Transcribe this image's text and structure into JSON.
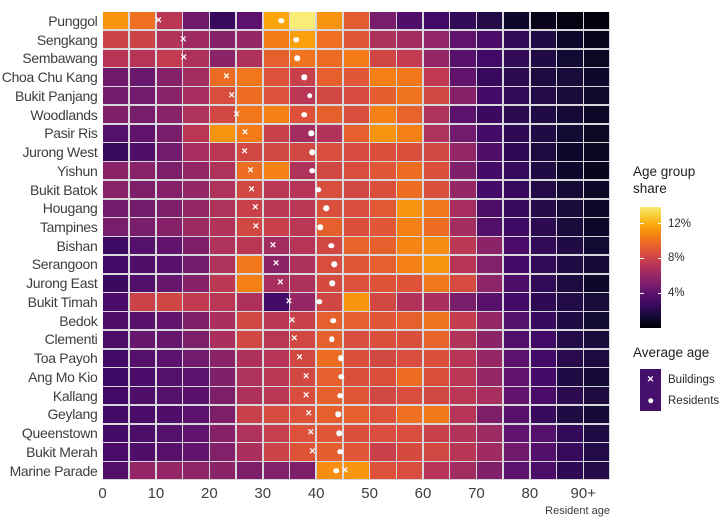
{
  "x_axis": {
    "label": "Resident age",
    "ticks": [
      {
        "label": "0",
        "age": 0
      },
      {
        "label": "10",
        "age": 10
      },
      {
        "label": "20",
        "age": 20
      },
      {
        "label": "30",
        "age": 30
      },
      {
        "label": "40",
        "age": 40
      },
      {
        "label": "50",
        "age": 50
      },
      {
        "label": "60",
        "age": 60
      },
      {
        "label": "70",
        "age": 70
      },
      {
        "label": "80",
        "age": 80
      },
      {
        "label": "90+",
        "age": 90
      }
    ],
    "min": 0,
    "max": 95,
    "bin_width_years": 5
  },
  "colorbar": {
    "title_line1": "Age group",
    "title_line2": "share",
    "ticks": [
      {
        "label": "12%",
        "value": 12
      },
      {
        "label": "8%",
        "value": 8
      },
      {
        "label": "4%",
        "value": 4
      }
    ],
    "bar_range": [
      0,
      13.9
    ],
    "colormap": "inferno",
    "colormap_value_max": 14.7
  },
  "legend_markers": {
    "title": "Average age",
    "key_fill": "#45106b",
    "items": [
      {
        "label": "Buildings",
        "marker": "x"
      },
      {
        "label": "Residents",
        "marker": "dot"
      }
    ]
  },
  "colors": {
    "background": "#ffffff",
    "gridline": "#d8d8dc",
    "text": "#3d3d3d",
    "marker": "#ffffff"
  },
  "chart_data": {
    "type": "heatmap",
    "unit": "percent share of town residents",
    "age_bins": [
      "0-4",
      "5-9",
      "10-14",
      "15-19",
      "20-24",
      "25-29",
      "30-34",
      "35-39",
      "40-44",
      "45-49",
      "50-54",
      "55-59",
      "60-64",
      "65-69",
      "70-74",
      "75-79",
      "80-84",
      "85-89",
      "90+"
    ],
    "rows": [
      {
        "town": "Punggol",
        "avg_building_age": 10.5,
        "avg_resident_age": 33.5,
        "values": [
          11.2,
          10.0,
          7.3,
          4.6,
          2.6,
          3.9,
          11.8,
          14.0,
          11.2,
          9.2,
          4.9,
          3.4,
          2.9,
          2.4,
          1.9,
          1.1,
          0.6,
          0.35,
          0.2
        ]
      },
      {
        "town": "Sengkang",
        "avg_building_age": 15.1,
        "avg_resident_age": 36.3,
        "values": [
          8.1,
          8.1,
          7.0,
          6.3,
          5.4,
          5.9,
          10.4,
          11.6,
          10.0,
          9.0,
          6.8,
          6.4,
          5.8,
          4.0,
          3.2,
          2.4,
          1.8,
          1.1,
          0.7
        ]
      },
      {
        "town": "Sembawang",
        "avg_building_age": 15.2,
        "avg_resident_age": 36.5,
        "values": [
          7.2,
          7.1,
          7.6,
          6.8,
          5.6,
          6.8,
          9.4,
          10.1,
          9.8,
          10.4,
          8.2,
          7.6,
          5.9,
          3.7,
          2.9,
          2.4,
          1.8,
          1.3,
          0.9
        ]
      },
      {
        "town": "Choa Chu Kang",
        "avg_building_age": 23.2,
        "avg_resident_age": 37.8,
        "values": [
          4.6,
          4.4,
          5.4,
          6.5,
          9.8,
          10.2,
          8.8,
          7.9,
          9.4,
          9.0,
          10.6,
          10.2,
          7.5,
          4.1,
          2.6,
          2.2,
          1.7,
          1.5,
          1.1
        ]
      },
      {
        "town": "Bukit Panjang",
        "avg_building_age": 24.2,
        "avg_resident_age": 38.8,
        "values": [
          4.8,
          4.7,
          5.5,
          6.6,
          8.6,
          9.9,
          8.8,
          7.3,
          8.3,
          8.5,
          9.3,
          10.1,
          8.3,
          5.4,
          3.1,
          2.4,
          1.9,
          1.6,
          1.2
        ]
      },
      {
        "town": "Woodlands",
        "avg_building_age": 25.1,
        "avg_resident_age": 37.8,
        "values": [
          5.2,
          4.9,
          5.5,
          6.9,
          8.3,
          10.2,
          10.6,
          8.8,
          9.4,
          8.6,
          10.6,
          9.5,
          6.9,
          3.9,
          2.7,
          2.2,
          1.8,
          1.4,
          1.0
        ]
      },
      {
        "town": "Pasir Ris",
        "avg_building_age": 26.7,
        "avg_resident_age": 39.1,
        "values": [
          3.6,
          4.0,
          5.0,
          7.3,
          11.2,
          10.4,
          7.9,
          6.5,
          7.0,
          9.4,
          11.2,
          10.6,
          6.9,
          4.7,
          3.0,
          2.3,
          1.8,
          1.3,
          0.9
        ]
      },
      {
        "town": "Jurong West",
        "avg_building_age": 26.6,
        "avg_resident_age": 39.3,
        "values": [
          2.5,
          3.4,
          4.7,
          6.6,
          7.3,
          8.3,
          8.3,
          8.3,
          8.6,
          8.5,
          8.7,
          8.7,
          8.3,
          5.9,
          3.4,
          2.3,
          1.7,
          1.1,
          0.8
        ]
      },
      {
        "town": "Yishun",
        "avg_building_age": 27.7,
        "avg_resident_age": 39.3,
        "values": [
          5.6,
          5.5,
          5.1,
          5.9,
          6.9,
          9.9,
          10.6,
          6.9,
          8.3,
          8.6,
          9.0,
          9.9,
          8.7,
          5.2,
          3.1,
          2.5,
          1.8,
          1.1,
          0.7
        ]
      },
      {
        "town": "Bukit Batok",
        "avg_building_age": 27.9,
        "avg_resident_age": 40.4,
        "values": [
          5.5,
          5.1,
          5.4,
          6.0,
          6.9,
          8.3,
          7.3,
          7.1,
          8.6,
          8.3,
          8.7,
          9.9,
          8.7,
          6.0,
          3.0,
          2.6,
          1.9,
          1.4,
          1.0
        ]
      },
      {
        "town": "Hougang",
        "avg_building_age": 28.6,
        "avg_resident_age": 41.9,
        "values": [
          4.7,
          4.8,
          5.1,
          5.9,
          6.9,
          7.9,
          7.3,
          7.3,
          8.7,
          8.6,
          9.1,
          11.2,
          10.2,
          6.6,
          3.3,
          2.6,
          2.0,
          1.5,
          1.0
        ]
      },
      {
        "town": "Tampines",
        "avg_building_age": 28.7,
        "avg_resident_age": 40.8,
        "values": [
          4.9,
          5.0,
          5.4,
          6.2,
          7.0,
          8.3,
          7.9,
          7.3,
          9.4,
          8.7,
          9.0,
          10.6,
          9.9,
          6.5,
          3.5,
          2.8,
          2.2,
          1.6,
          1.0
        ]
      },
      {
        "town": "Bishan",
        "avg_building_age": 31.9,
        "avg_resident_age": 42.8,
        "values": [
          2.8,
          3.6,
          4.1,
          5.1,
          6.9,
          7.3,
          6.4,
          7.1,
          8.3,
          9.5,
          9.4,
          10.7,
          10.9,
          7.4,
          5.6,
          3.2,
          2.4,
          1.8,
          1.3
        ]
      },
      {
        "town": "Serangoon",
        "avg_building_age": 32.5,
        "avg_resident_age": 43.4,
        "values": [
          2.9,
          3.4,
          3.8,
          4.7,
          6.9,
          10.2,
          5.6,
          6.8,
          8.6,
          9.0,
          9.4,
          10.6,
          11.2,
          7.1,
          5.3,
          3.0,
          2.4,
          1.8,
          1.4
        ]
      },
      {
        "town": "Jurong East",
        "avg_building_age": 33.3,
        "avg_resident_age": 43.0,
        "values": [
          2.7,
          3.5,
          4.3,
          5.4,
          7.4,
          10.6,
          6.6,
          6.8,
          8.4,
          8.8,
          8.9,
          8.9,
          10.2,
          8.5,
          5.7,
          3.3,
          2.4,
          1.7,
          1.1
        ]
      },
      {
        "town": "Bukit Timah",
        "avg_building_age": 34.9,
        "avg_resident_age": 40.6,
        "values": [
          3.2,
          8.0,
          8.2,
          7.5,
          7.3,
          6.8,
          3.0,
          6.0,
          8.2,
          11.2,
          8.3,
          7.0,
          6.7,
          5.0,
          3.7,
          2.9,
          2.3,
          1.9,
          1.5
        ]
      },
      {
        "town": "Bedok",
        "avg_building_age": 35.5,
        "avg_resident_age": 43.2,
        "values": [
          3.4,
          3.8,
          4.1,
          5.1,
          6.7,
          8.3,
          7.3,
          7.9,
          9.4,
          9.4,
          9.0,
          9.4,
          10.1,
          7.7,
          5.9,
          3.6,
          2.6,
          1.8,
          1.3
        ]
      },
      {
        "town": "Clementi",
        "avg_building_age": 35.9,
        "avg_resident_age": 42.9,
        "values": [
          3.3,
          4.3,
          4.3,
          5.1,
          6.7,
          8.3,
          7.3,
          8.3,
          9.4,
          8.6,
          8.7,
          8.7,
          9.5,
          7.0,
          5.6,
          3.5,
          2.9,
          1.9,
          1.6
        ]
      },
      {
        "town": "Toa Payoh",
        "avg_building_age": 36.9,
        "avg_resident_age": 44.6,
        "values": [
          2.9,
          3.6,
          3.9,
          4.7,
          5.6,
          6.8,
          7.1,
          8.3,
          9.9,
          8.7,
          8.3,
          8.6,
          8.7,
          7.2,
          6.0,
          3.9,
          2.9,
          2.1,
          1.7
        ]
      },
      {
        "town": "Ang Mo Kio",
        "avg_building_age": 38.1,
        "avg_resident_age": 44.7,
        "values": [
          2.8,
          3.2,
          3.6,
          3.9,
          5.2,
          6.9,
          7.3,
          8.3,
          9.4,
          8.7,
          8.7,
          9.9,
          8.7,
          7.3,
          5.9,
          4.0,
          3.1,
          1.8,
          1.4
        ]
      },
      {
        "town": "Kallang",
        "avg_building_age": 38.1,
        "avg_resident_age": 44.5,
        "values": [
          2.9,
          3.4,
          3.6,
          3.8,
          5.1,
          6.8,
          7.3,
          8.6,
          9.4,
          9.0,
          8.3,
          8.6,
          8.3,
          7.3,
          6.6,
          4.1,
          3.2,
          2.2,
          1.7
        ]
      },
      {
        "town": "Geylang",
        "avg_building_age": 38.6,
        "avg_resident_age": 44.1,
        "values": [
          2.9,
          3.2,
          3.4,
          3.9,
          5.1,
          7.9,
          8.5,
          8.8,
          9.4,
          9.4,
          8.8,
          10.0,
          10.3,
          7.1,
          5.1,
          3.7,
          2.6,
          1.8,
          1.4
        ]
      },
      {
        "town": "Queenstown",
        "avg_building_age": 39.0,
        "avg_resident_age": 44.3,
        "values": [
          3.1,
          3.3,
          3.6,
          4.0,
          5.4,
          6.9,
          7.8,
          8.8,
          9.0,
          8.7,
          8.6,
          8.6,
          7.9,
          7.0,
          6.2,
          4.0,
          3.6,
          2.4,
          1.8
        ]
      },
      {
        "town": "Bukit Merah",
        "avg_building_age": 39.3,
        "avg_resident_age": 44.5,
        "values": [
          3.2,
          3.4,
          3.7,
          4.1,
          5.3,
          6.7,
          8.0,
          8.9,
          9.3,
          9.0,
          7.9,
          8.4,
          8.3,
          7.2,
          6.3,
          4.6,
          3.5,
          2.5,
          1.9
        ]
      },
      {
        "town": "Marine Parade",
        "avg_building_age": 45.4,
        "avg_resident_age": 43.8,
        "values": [
          3.5,
          5.9,
          5.9,
          5.7,
          5.6,
          5.1,
          5.3,
          5.1,
          11.0,
          11.2,
          8.8,
          8.6,
          7.1,
          6.4,
          5.2,
          3.9,
          3.3,
          2.3,
          2.0
        ]
      }
    ]
  }
}
